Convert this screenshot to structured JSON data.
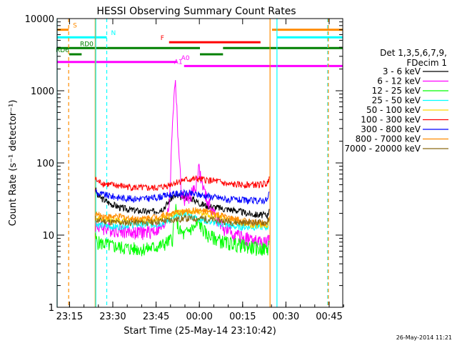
{
  "chart_data": {
    "type": "line",
    "title": "HESSI Observing Summary Count Rates",
    "xlabel": "Start Time (25-May-14 23:10:42)",
    "ylabel": "Count Rate (s⁻¹ detector⁻¹)",
    "ylim": [
      1,
      10000
    ],
    "yscale": "log",
    "x_unit": "minutes after 23:10:42",
    "xlim": [
      0,
      99
    ],
    "x_ticks": [
      {
        "label": "23:15",
        "x": 4.3
      },
      {
        "label": "23:30",
        "x": 19.3
      },
      {
        "label": "23:45",
        "x": 34.3
      },
      {
        "label": "00:00",
        "x": 49.3
      },
      {
        "label": "00:15",
        "x": 64.3
      },
      {
        "label": "00:30",
        "x": 79.3
      },
      {
        "label": "00:45",
        "x": 94.3
      }
    ],
    "y_ticks": [
      {
        "label": "1",
        "v": 1
      },
      {
        "label": "10",
        "v": 10
      },
      {
        "label": "100",
        "v": 100
      },
      {
        "label": "1000",
        "v": 1000
      },
      {
        "label": "10000",
        "v": 10000
      }
    ],
    "legend_header": [
      "Det 1,3,5,6,7,9,",
      "FDecim 1"
    ],
    "legend_placement": "right",
    "series": [
      {
        "name": "3 - 6 keV",
        "color": "#000000",
        "x": [
          13.3,
          14,
          18,
          22,
          27,
          32,
          35,
          37,
          40,
          44,
          47,
          48,
          50,
          53,
          56,
          58,
          59,
          62,
          66,
          70,
          73,
          73.5
        ],
        "y": [
          44,
          35,
          28,
          24,
          22,
          21,
          22,
          24,
          34,
          34,
          32,
          30,
          27,
          25,
          24,
          23,
          23,
          22,
          20,
          19,
          19,
          23
        ]
      },
      {
        "name": "6 - 12 keV",
        "color": "#ff00ff",
        "x": [
          13.3,
          14,
          20,
          26,
          31,
          35,
          37,
          39,
          40,
          41,
          42,
          43,
          44,
          46,
          48,
          49,
          50,
          52,
          55,
          58,
          62,
          66,
          70,
          73,
          73.5
        ],
        "y": [
          14,
          13,
          12,
          11,
          11,
          12,
          13,
          30,
          400,
          1500,
          200,
          40,
          30,
          35,
          45,
          90,
          55,
          30,
          18,
          12,
          10,
          9,
          8,
          8,
          10
        ]
      },
      {
        "name": "12 - 25 keV",
        "color": "#00ff00",
        "x": [
          13.3,
          14,
          20,
          26,
          31,
          35,
          37,
          40,
          41,
          42,
          44,
          46,
          48,
          49,
          50,
          52,
          55,
          58,
          62,
          66,
          70,
          73,
          73.5
        ],
        "y": [
          9,
          8,
          7,
          6.5,
          6.5,
          7,
          7.5,
          9,
          25,
          12,
          10,
          12,
          13,
          15,
          13,
          10,
          9,
          8,
          7.5,
          7,
          6.5,
          6.5,
          8
        ]
      },
      {
        "name": "25 - 50 keV",
        "color": "#00ffff",
        "x": [
          13.3,
          14,
          20,
          26,
          31,
          35,
          37,
          40,
          44,
          47,
          49,
          51,
          54,
          58,
          62,
          66,
          70,
          73,
          73.5
        ],
        "y": [
          15,
          14,
          13,
          14,
          14,
          14,
          15,
          17,
          20,
          18,
          17,
          16,
          15,
          14,
          13,
          13,
          13,
          13,
          16
        ]
      },
      {
        "name": "50 - 100 keV",
        "color": "#ffd700",
        "x": [
          13.3,
          14,
          20,
          26,
          31,
          35,
          37,
          40,
          44,
          48,
          51,
          55,
          60,
          64,
          68,
          73,
          73.5
        ],
        "y": [
          18,
          17,
          16,
          16,
          16,
          17,
          18,
          19,
          21,
          22,
          20,
          18,
          16,
          15,
          14,
          14,
          17
        ]
      },
      {
        "name": "100 - 300 keV",
        "color": "#ff0000",
        "x": [
          13.3,
          14,
          18,
          22,
          26,
          30,
          34,
          37,
          40,
          44,
          48,
          52,
          56,
          58,
          59,
          62,
          66,
          70,
          73,
          73.5
        ],
        "y": [
          60,
          55,
          50,
          48,
          46,
          45,
          45,
          47,
          52,
          58,
          60,
          58,
          55,
          52,
          50,
          50,
          50,
          50,
          52,
          65
        ]
      },
      {
        "name": "300 - 800 keV",
        "color": "#0000ff",
        "x": [
          13.3,
          14,
          18,
          22,
          26,
          30,
          34,
          37,
          40,
          44,
          48,
          52,
          56,
          58,
          59,
          62,
          66,
          70,
          73,
          73.5
        ],
        "y": [
          42,
          38,
          35,
          33,
          32,
          32,
          33,
          35,
          37,
          38,
          37,
          35,
          33,
          32,
          31,
          31,
          30,
          30,
          31,
          40
        ]
      },
      {
        "name": "800 - 7000 keV",
        "color": "#ff8c00",
        "x": [
          13.3,
          14,
          18,
          22,
          26,
          30,
          34,
          37,
          40,
          44,
          48,
          52,
          56,
          60,
          64,
          68,
          73,
          73.5
        ],
        "y": [
          20,
          19,
          18,
          18,
          17,
          17,
          18,
          19,
          20,
          21,
          22,
          21,
          19,
          17,
          16,
          15,
          15,
          18
        ]
      },
      {
        "name": "7000 - 20000 keV",
        "color": "#8b6914",
        "x": [
          13.3,
          14,
          20,
          26,
          32,
          38,
          44,
          50,
          56,
          62,
          68,
          73,
          73.5
        ],
        "y": [
          17,
          16,
          15,
          15,
          15,
          16,
          17,
          17,
          16,
          15,
          15,
          15,
          17
        ]
      }
    ],
    "flag_bars": [
      {
        "label": "S",
        "color": "#ff8c00",
        "v": 7000,
        "segments": [
          [
            0,
            4.0
          ],
          [
            74.5,
            99
          ]
        ]
      },
      {
        "label": "N",
        "color": "#00ffff",
        "v": 5500,
        "segments": [
          [
            0,
            17.2
          ],
          [
            76.2,
            99
          ]
        ]
      },
      {
        "label": "F",
        "color": "#ff0000",
        "v": 4700,
        "segments": [
          [
            38.8,
            70.5
          ]
        ]
      },
      {
        "label": "RD0",
        "color": "#008000",
        "v": 3900,
        "segments": [
          [
            0,
            49.5
          ],
          [
            57.5,
            99
          ]
        ]
      },
      {
        "label": "RD6",
        "color": "#008000",
        "v": 3200,
        "segments": [
          [
            4.2,
            8.5
          ],
          [
            49.5,
            57.5
          ]
        ]
      },
      {
        "label": "A0",
        "color": "#ff00ff",
        "v": 2500,
        "segments": [
          [
            0,
            41.5
          ]
        ]
      },
      {
        "label": "A1",
        "color": "#ff00ff",
        "v": 2200,
        "segments": [
          [
            44.0,
            99
          ]
        ]
      }
    ],
    "vertical_markers": [
      {
        "x": 0,
        "color": "#00ffff",
        "style": "solid"
      },
      {
        "x": 4.0,
        "color": "#ff8c00",
        "style": "dashed"
      },
      {
        "x": 13.2,
        "color": "#ff8c00",
        "style": "solid"
      },
      {
        "x": 13.4,
        "color": "#00ffff",
        "style": "solid"
      },
      {
        "x": 17.2,
        "color": "#00ffff",
        "style": "dashed"
      },
      {
        "x": 73.8,
        "color": "#ff8c00",
        "style": "solid"
      },
      {
        "x": 76.2,
        "color": "#00ffff",
        "style": "solid"
      },
      {
        "x": 93.8,
        "color": "#00ffff",
        "style": "dashed"
      },
      {
        "x": 94.0,
        "color": "#ff8c00",
        "style": "dashed"
      }
    ],
    "footer_date": "26-May-2014 11:21"
  }
}
